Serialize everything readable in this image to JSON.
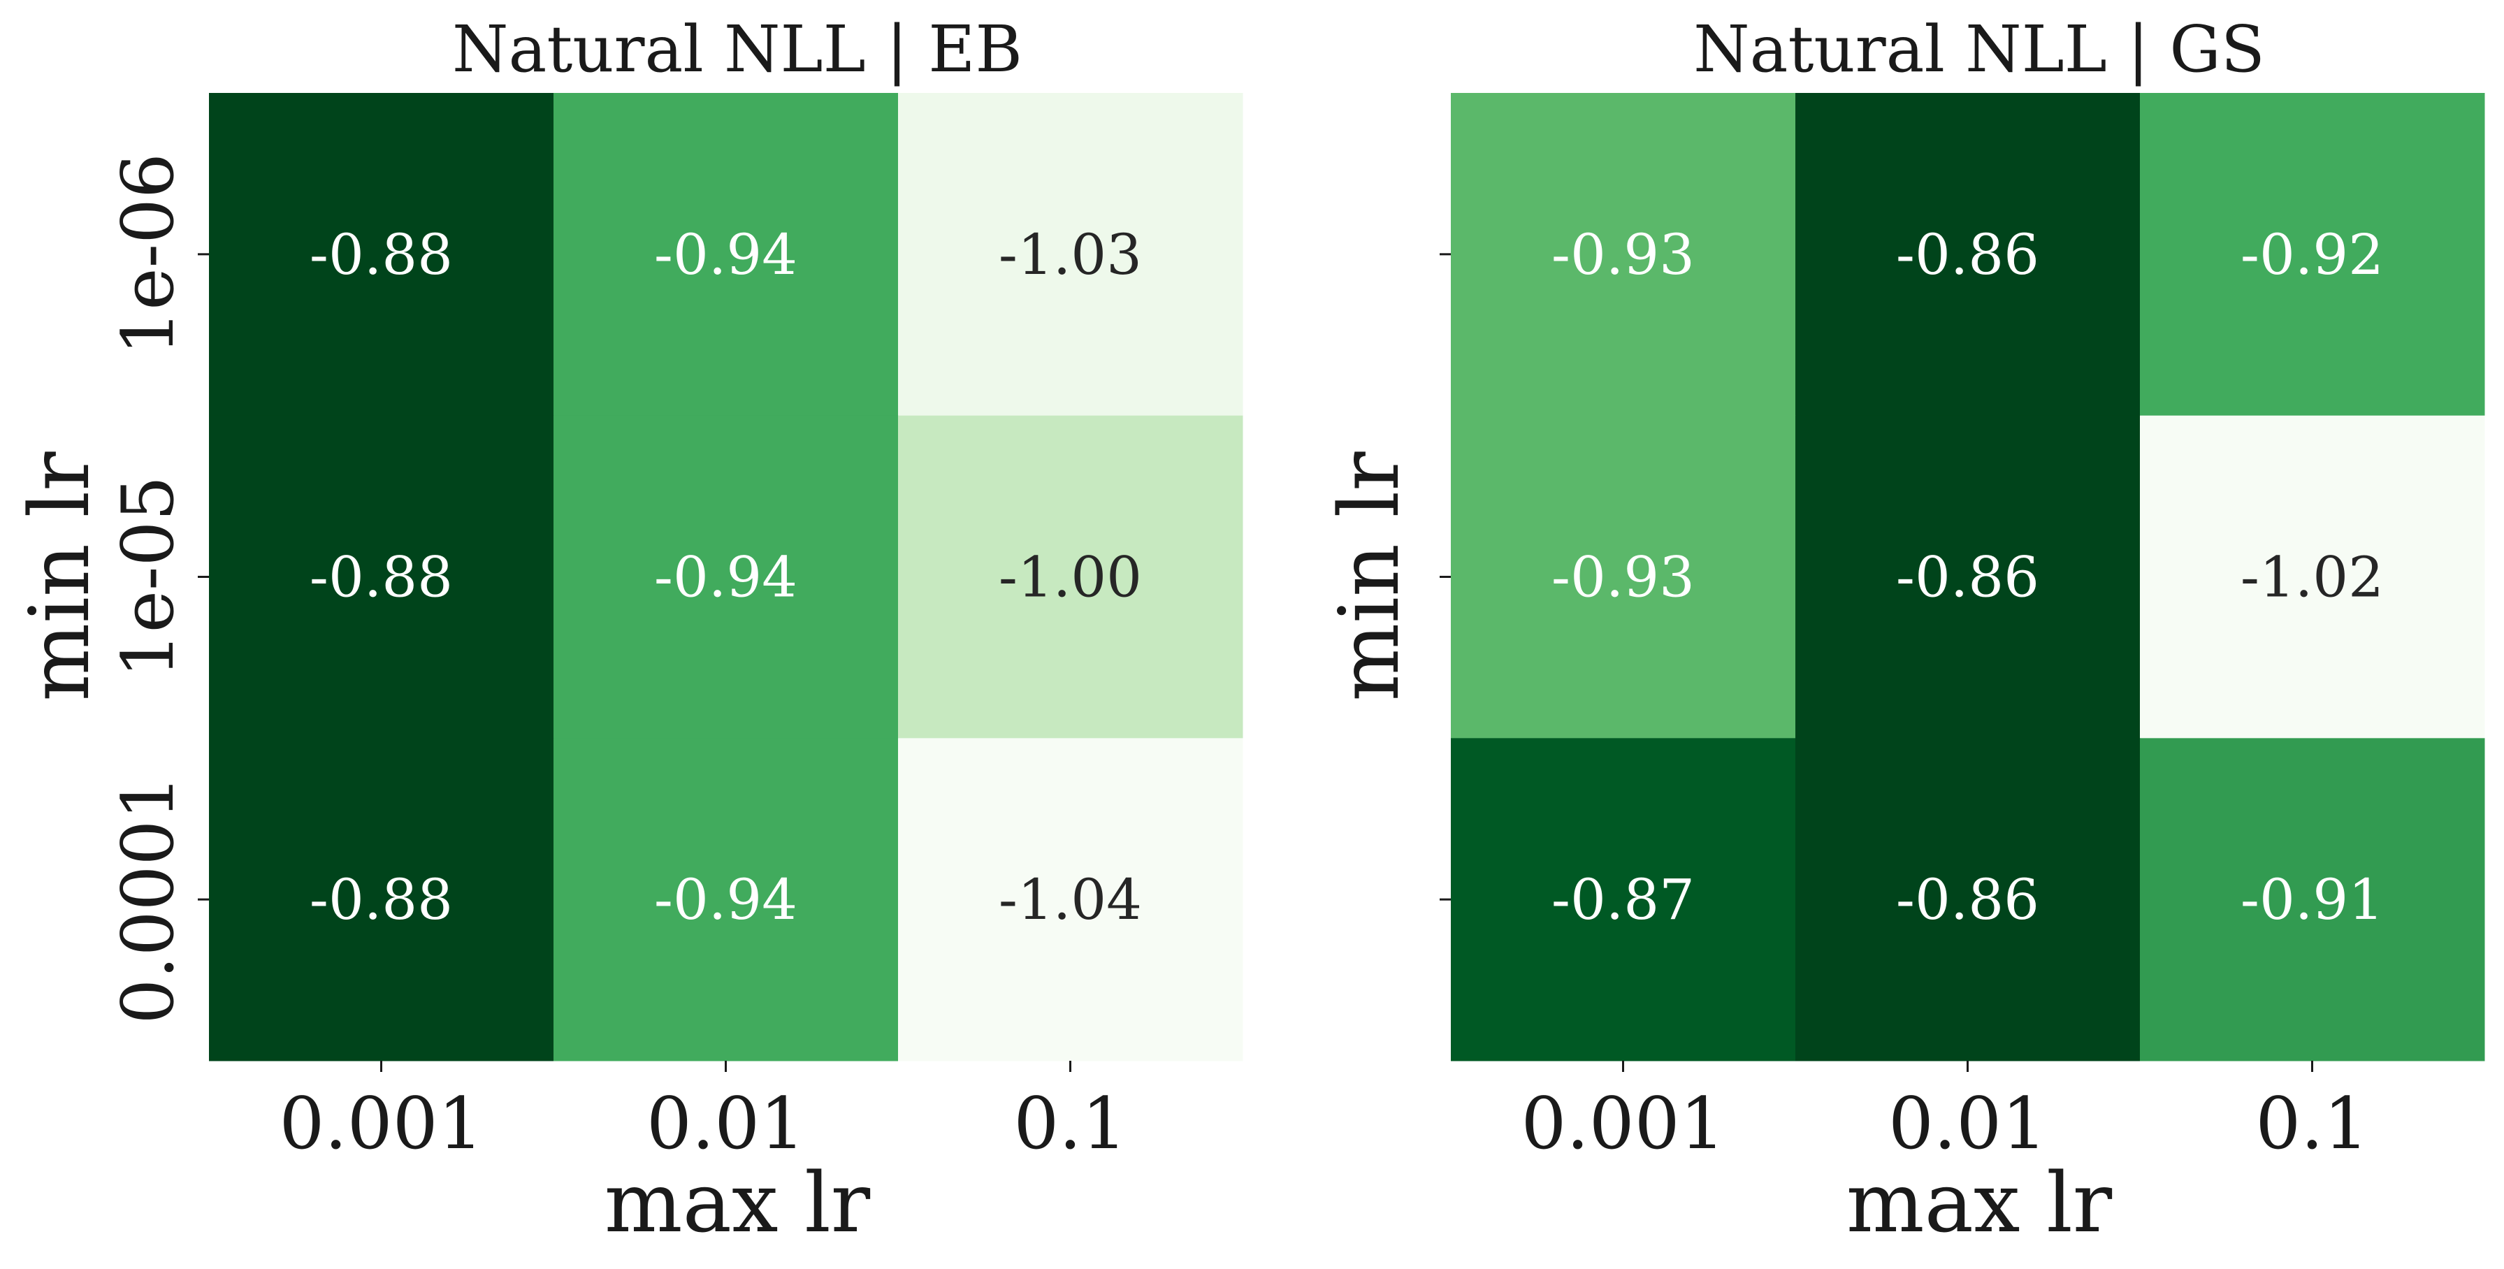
{
  "chart_data": [
    {
      "type": "heatmap",
      "title": "Natural NLL | EB",
      "xlabel": "max lr",
      "ylabel": "min lr",
      "x_categories": [
        "0.001",
        "0.01",
        "0.1"
      ],
      "y_categories": [
        "1e-06",
        "1e-05",
        "0.0001"
      ],
      "values": [
        [
          -0.88,
          -0.94,
          -1.03
        ],
        [
          -0.88,
          -0.94,
          -1.0
        ],
        [
          -0.88,
          -0.94,
          -1.04
        ]
      ],
      "value_labels": [
        [
          "-0.88",
          "-0.94",
          "-1.03"
        ],
        [
          "-0.88",
          "-0.94",
          "-1.00"
        ],
        [
          "-0.88",
          "-0.94",
          "-1.04"
        ]
      ],
      "colormap": "Greens",
      "show_y_tick_labels": true
    },
    {
      "type": "heatmap",
      "title": "Natural NLL | GS",
      "xlabel": "max lr",
      "ylabel": "min lr",
      "x_categories": [
        "0.001",
        "0.01",
        "0.1"
      ],
      "y_categories": [
        "1e-06",
        "1e-05",
        "0.0001"
      ],
      "values": [
        [
          -0.93,
          -0.86,
          -0.92
        ],
        [
          -0.93,
          -0.86,
          -1.02
        ],
        [
          -0.87,
          -0.86,
          -0.91
        ]
      ],
      "value_labels": [
        [
          "-0.93",
          "-0.86",
          "-0.92"
        ],
        [
          "-0.93",
          "-0.86",
          "-1.02"
        ],
        [
          "-0.87",
          "-0.86",
          "-0.91"
        ]
      ],
      "colormap": "Greens",
      "show_y_tick_labels": false
    }
  ]
}
